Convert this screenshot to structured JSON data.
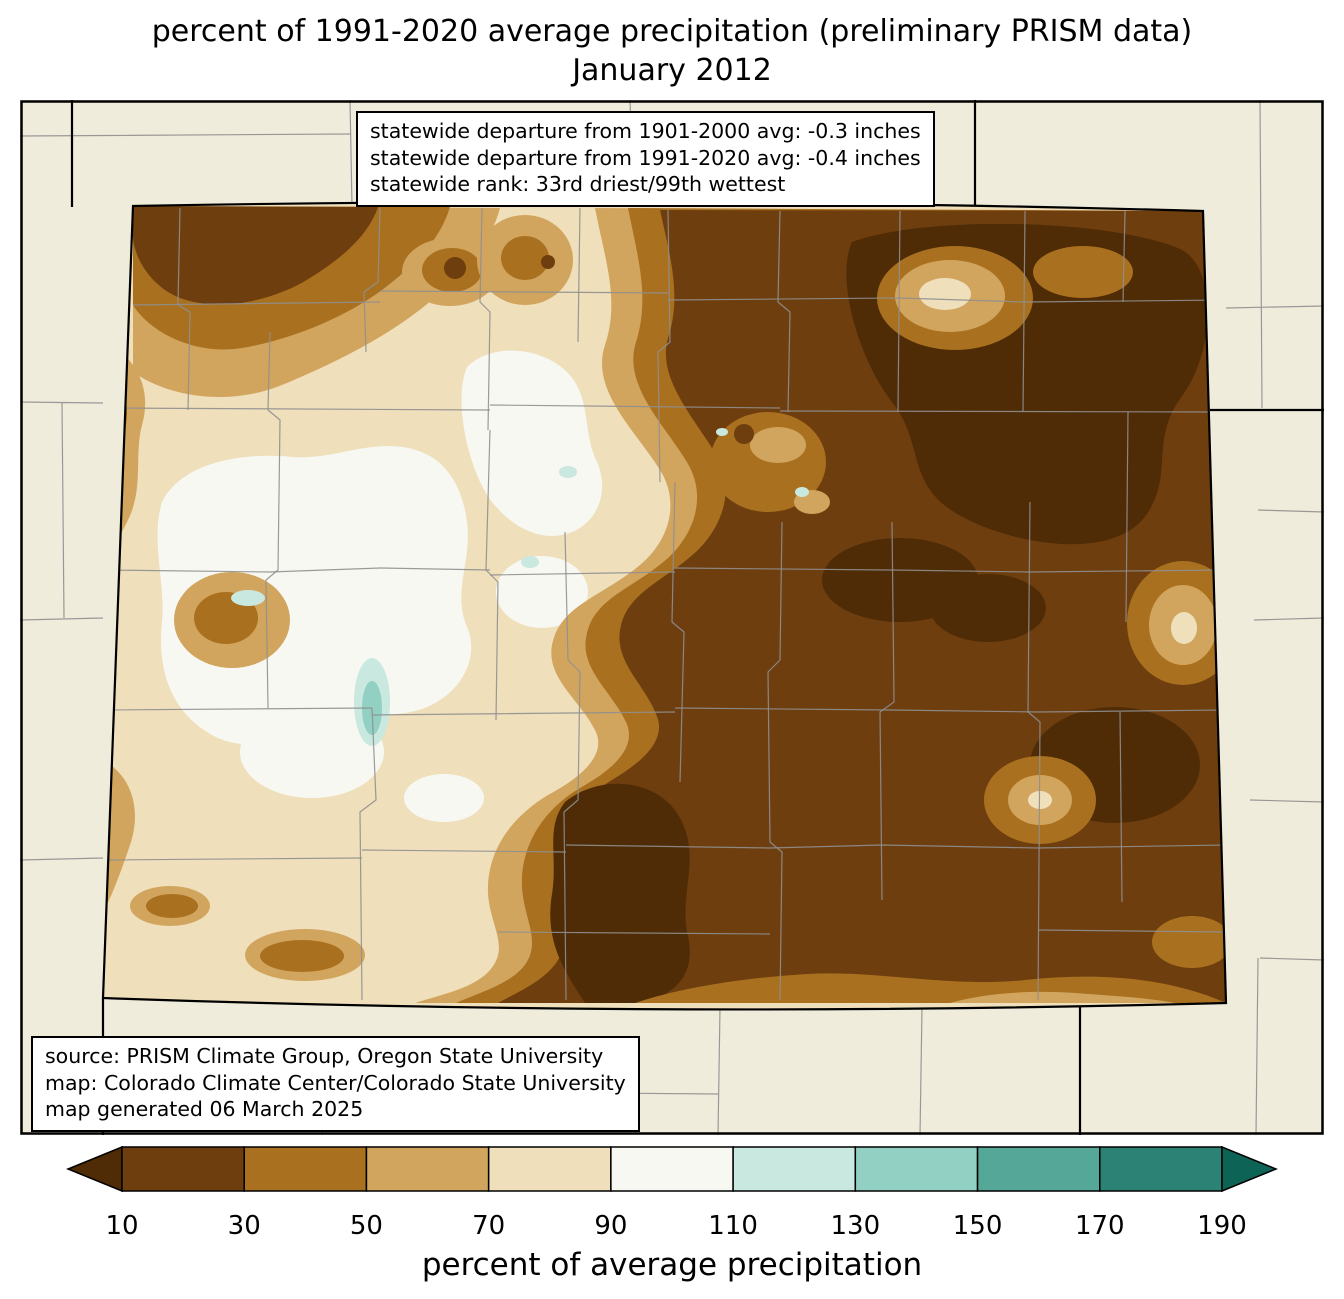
{
  "title": {
    "line1": "percent of 1991-2020 average precipitation (preliminary PRISM data)",
    "line2": "January 2012"
  },
  "stats_box": {
    "line1": "statewide departure from 1901-2000 avg: -0.3 inches",
    "line2": "statewide departure from 1991-2020 avg: -0.4 inches",
    "line3": "statewide rank: 33rd driest/99th wettest"
  },
  "source_box": {
    "line1": "source: PRISM Climate Group, Oregon State University",
    "line2": "map: Colorado Climate Center/Colorado State University",
    "line3": "map generated 06 March 2025"
  },
  "colorbar": {
    "label": "percent of average precipitation",
    "ticks": [
      "10",
      "30",
      "50",
      "70",
      "90",
      "110",
      "130",
      "150",
      "170",
      "190"
    ],
    "segment_colors": [
      "#4f2c06",
      "#6e3e0f",
      "#a9711f",
      "#d2a55f",
      "#efdfbb",
      "#f8f8f3",
      "#c9e8e0",
      "#92d0c3",
      "#55a898",
      "#2c8274",
      "#0d6355"
    ]
  },
  "map": {
    "background_color": "#f0ecdb",
    "county_line_color": "#8f8f8f",
    "state_border_color": "#000000",
    "frame_color": "#000000"
  }
}
